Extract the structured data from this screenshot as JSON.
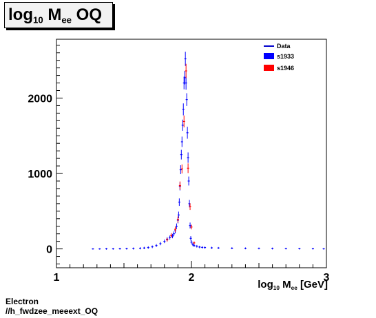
{
  "title": {
    "main": "log",
    "sub1": "10",
    "mid": " M",
    "sub2": "ee",
    "tail": " OQ"
  },
  "xlabel": {
    "main": "log",
    "sub1": "10",
    "mid": " M",
    "sub2": "ee",
    "tail": " [GeV]"
  },
  "footer": {
    "line1": "Electron",
    "line2": "//h_fwdzee_meeext_OQ"
  },
  "chart_data": {
    "type": "scatter",
    "title": "log10 Mee OQ",
    "xlabel": "log10 Mee [GeV]",
    "ylabel": "",
    "xlim": [
      1,
      3
    ],
    "ylim": [
      -250,
      2780
    ],
    "x_ticks": [
      1,
      2,
      3
    ],
    "x_tick_labels": [
      "1",
      "2",
      "3"
    ],
    "y_ticks": [
      0,
      1000,
      2000
    ],
    "y_tick_labels": [
      "0",
      "1000",
      "2000"
    ],
    "grid": false,
    "legend": {
      "position": "top-right",
      "entries": [
        "Data",
        "s1933",
        "s1946"
      ]
    },
    "colors": {
      "Data": "#0000cc",
      "s1933": "#0000ff",
      "s1946": "#ff0000"
    },
    "series": [
      {
        "name": "s1933",
        "x": [
          1.27,
          1.32,
          1.37,
          1.42,
          1.47,
          1.52,
          1.57,
          1.62,
          1.65,
          1.68,
          1.71,
          1.74,
          1.77,
          1.8,
          1.82,
          1.84,
          1.86,
          1.87,
          1.88,
          1.89,
          1.9,
          1.905,
          1.91,
          1.915,
          1.92,
          1.925,
          1.93,
          1.935,
          1.94,
          1.945,
          1.95,
          1.955,
          1.96,
          1.965,
          1.97,
          1.975,
          1.98,
          1.985,
          1.99,
          1.995,
          2.0,
          2.01,
          2.02,
          2.04,
          2.06,
          2.08,
          2.1,
          2.15,
          2.2,
          2.3,
          2.4,
          2.5,
          2.6,
          2.7,
          2.8,
          2.9,
          2.98
        ],
        "values": [
          0,
          0,
          1,
          1,
          2,
          3,
          5,
          8,
          12,
          18,
          28,
          45,
          70,
          100,
          130,
          150,
          170,
          200,
          240,
          300,
          380,
          450,
          620,
          830,
          1050,
          1250,
          1420,
          1640,
          1850,
          2200,
          2270,
          2520,
          2200,
          1980,
          1540,
          1210,
          900,
          600,
          310,
          140,
          90,
          60,
          45,
          35,
          25,
          20,
          18,
          14,
          12,
          9,
          7,
          6,
          5,
          4,
          3,
          2,
          1
        ],
        "errors": [
          0,
          0,
          2,
          2,
          3,
          3,
          4,
          5,
          6,
          7,
          8,
          10,
          12,
          14,
          16,
          18,
          20,
          22,
          25,
          28,
          32,
          35,
          40,
          45,
          50,
          55,
          60,
          65,
          70,
          75,
          80,
          85,
          80,
          75,
          70,
          60,
          50,
          40,
          30,
          20,
          15,
          12,
          10,
          8,
          7,
          6,
          5,
          5,
          4,
          4,
          3,
          3,
          3,
          2,
          2,
          2,
          1
        ]
      },
      {
        "name": "s1946",
        "x": [
          1.82,
          1.85,
          1.88,
          1.9,
          1.915,
          1.93,
          1.945,
          1.96,
          1.975,
          1.99,
          2.0,
          2.02
        ],
        "values": [
          120,
          180,
          260,
          390,
          840,
          1060,
          1690,
          2360,
          1070,
          560,
          290,
          80
        ],
        "errors": [
          15,
          20,
          25,
          32,
          45,
          50,
          70,
          85,
          55,
          35,
          22,
          10
        ]
      }
    ]
  }
}
